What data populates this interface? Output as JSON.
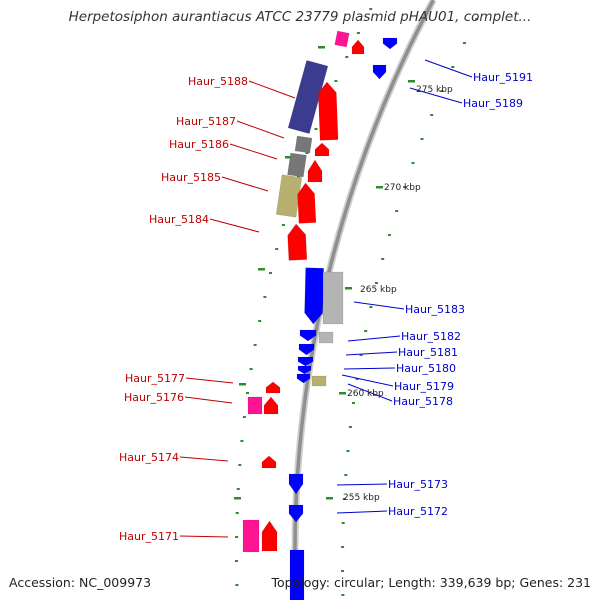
{
  "title": "Herpetosiphon aurantiacus ATCC 23779 plasmid pHAU01, complet...",
  "footer": {
    "accession": "Accession: NC_009973",
    "summary": "Topology: circular; Length: 339,639 bp; Genes: 231"
  },
  "colors": {
    "backbone": "#8f8f8f",
    "tick": "#2e8b2e",
    "label_red": "#c00000",
    "label_blue": "#0000cc",
    "gene_red": "#ff0000",
    "gene_blue": "#0000ff",
    "gene_magenta": "#ff1493",
    "gene_navy": "#3b3b8f",
    "gene_khaki": "#b8b070",
    "gene_gray": "#b4b4b4",
    "gene_dark_gray": "#777777"
  },
  "scale_labels": [
    "275 kbp",
    "270 kbp",
    "265 kbp",
    "260 kbp",
    "255 kbp"
  ],
  "gene_labels_left": [
    "Haur_5188",
    "Haur_5187",
    "Haur_5186",
    "Haur_5185",
    "Haur_5184",
    "Haur_5177",
    "Haur_5176",
    "Haur_5174",
    "Haur_5171"
  ],
  "gene_labels_right": [
    "Haur_5191",
    "Haur_5189",
    "Haur_5183",
    "Haur_5182",
    "Haur_5181",
    "Haur_5180",
    "Haur_5179",
    "Haur_5178",
    "Haur_5173",
    "Haur_5172"
  ]
}
